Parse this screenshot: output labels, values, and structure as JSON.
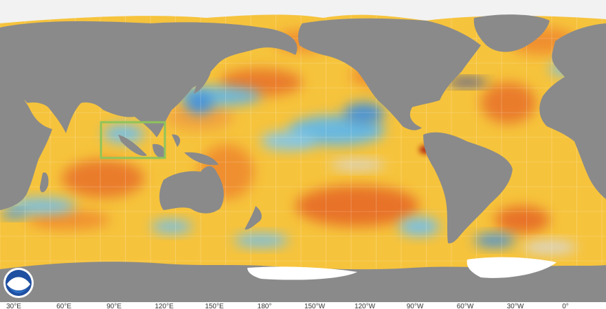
{
  "map": {
    "longitude_labels": [
      "30°E",
      "60°E",
      "90°E",
      "120°E",
      "150°E",
      "180°",
      "150°W",
      "120°W",
      "90°W",
      "60°W",
      "30°W",
      "0°"
    ]
  }
}
